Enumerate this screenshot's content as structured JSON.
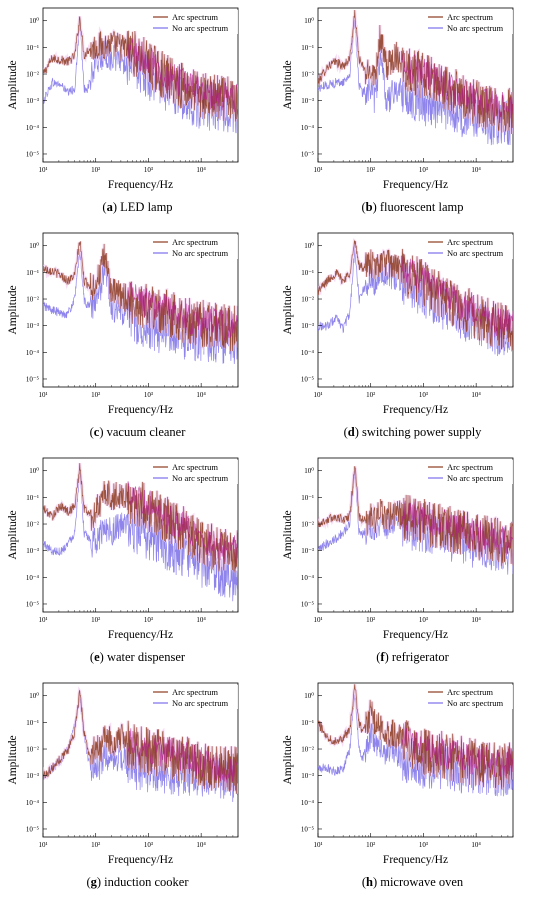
{
  "colors": {
    "arc": "#8b3a1e",
    "no_arc": "#7a6ee8",
    "overlap": "#b0178a",
    "halo": "#f4c6f0"
  },
  "chart_data": [
    {
      "type": "line",
      "panel_label": "(a)",
      "caption": "LED lamp",
      "xlabel": "Frequency/Hz",
      "ylabel": "Amplitude",
      "x_scale": "log",
      "y_scale": "log",
      "xlim": [
        10,
        50000
      ],
      "ylim": [
        5e-06,
        3
      ],
      "x_ticks": [
        "10¹",
        "10²",
        "10³",
        "10⁴"
      ],
      "y_ticks": [
        "10⁰",
        "10⁻¹",
        "10⁻²",
        "10⁻³",
        "10⁻⁴",
        "10⁻⁵"
      ],
      "legend_location": "top-right",
      "series": [
        {
          "name": "Arc spectrum",
          "x": [
            10,
            15,
            22,
            30,
            40,
            50,
            60,
            70,
            85,
            100,
            120,
            150,
            200,
            300,
            500,
            1000,
            2000,
            5000,
            10000,
            20000,
            50000
          ],
          "y": [
            0.01,
            0.04,
            0.035,
            0.03,
            0.05,
            1.5,
            0.05,
            0.08,
            0.1,
            0.12,
            0.13,
            0.14,
            0.15,
            0.12,
            0.08,
            0.03,
            0.01,
            0.004,
            0.002,
            0.0015,
            0.0012
          ]
        },
        {
          "name": "No arc spectrum",
          "x": [
            10,
            15,
            22,
            30,
            40,
            50,
            60,
            70,
            85,
            100,
            120,
            150,
            200,
            300,
            500,
            1000,
            2000,
            5000,
            10000,
            20000,
            50000
          ],
          "y": [
            0.001,
            0.005,
            0.004,
            0.002,
            0.003,
            1.0,
            0.003,
            0.003,
            0.01,
            0.03,
            0.05,
            0.06,
            0.05,
            0.04,
            0.025,
            0.01,
            0.004,
            0.0015,
            0.0008,
            0.0006,
            0.0005
          ]
        }
      ]
    },
    {
      "type": "line",
      "panel_label": "(b)",
      "caption": "fluorescent lamp",
      "xlabel": "Frequency/Hz",
      "ylabel": "Amplitude",
      "x_scale": "log",
      "y_scale": "log",
      "xlim": [
        10,
        50000
      ],
      "ylim": [
        5e-06,
        3
      ],
      "x_ticks": [
        "10¹",
        "10²",
        "10³",
        "10⁴"
      ],
      "y_ticks": [
        "10⁰",
        "10⁻¹",
        "10⁻²",
        "10⁻³",
        "10⁻⁴",
        "10⁻⁵"
      ],
      "legend_location": "top-right",
      "series": [
        {
          "name": "Arc spectrum",
          "x": [
            10,
            15,
            22,
            30,
            40,
            50,
            60,
            70,
            85,
            100,
            120,
            150,
            200,
            300,
            500,
            1000,
            2000,
            5000,
            10000,
            20000,
            50000
          ],
          "y": [
            0.005,
            0.02,
            0.03,
            0.02,
            0.04,
            2.0,
            0.04,
            0.02,
            0.01,
            0.02,
            0.01,
            0.3,
            0.02,
            0.06,
            0.02,
            0.01,
            0.005,
            0.002,
            0.001,
            0.0006,
            0.0005
          ]
        },
        {
          "name": "No arc spectrum",
          "x": [
            10,
            15,
            22,
            30,
            40,
            50,
            60,
            70,
            85,
            100,
            120,
            150,
            200,
            300,
            500,
            1000,
            2000,
            5000,
            10000,
            20000,
            50000
          ],
          "y": [
            0.003,
            0.004,
            0.005,
            0.005,
            0.01,
            1.2,
            0.004,
            0.002,
            0.003,
            0.004,
            0.001,
            0.05,
            0.001,
            0.003,
            0.002,
            0.001,
            0.0008,
            0.0004,
            0.0003,
            0.0002,
            0.0002
          ]
        }
      ]
    },
    {
      "type": "line",
      "panel_label": "(c)",
      "caption": "vacuum cleaner",
      "xlabel": "Frequency/Hz",
      "ylabel": "Amplitude",
      "x_scale": "log",
      "y_scale": "log",
      "xlim": [
        10,
        50000
      ],
      "ylim": [
        5e-06,
        3
      ],
      "x_ticks": [
        "10¹",
        "10²",
        "10³",
        "10⁴"
      ],
      "y_ticks": [
        "10⁰",
        "10⁻¹",
        "10⁻²",
        "10⁻³",
        "10⁻⁴",
        "10⁻⁵"
      ],
      "legend_location": "top-right",
      "series": [
        {
          "name": "Arc spectrum",
          "x": [
            10,
            15,
            22,
            30,
            40,
            50,
            60,
            70,
            85,
            100,
            120,
            150,
            200,
            300,
            500,
            1000,
            2000,
            5000,
            10000,
            20000,
            50000
          ],
          "y": [
            0.15,
            0.12,
            0.08,
            0.05,
            0.08,
            1.8,
            0.05,
            0.04,
            0.03,
            0.05,
            0.1,
            0.5,
            0.02,
            0.015,
            0.01,
            0.006,
            0.004,
            0.002,
            0.0015,
            0.0012,
            0.001
          ]
        },
        {
          "name": "No arc spectrum",
          "x": [
            10,
            15,
            22,
            30,
            40,
            50,
            60,
            70,
            85,
            100,
            120,
            150,
            200,
            300,
            500,
            1000,
            2000,
            5000,
            10000,
            20000,
            50000
          ],
          "y": [
            0.006,
            0.004,
            0.003,
            0.003,
            0.01,
            0.8,
            0.01,
            0.006,
            0.006,
            0.01,
            0.02,
            0.3,
            0.005,
            0.004,
            0.002,
            0.001,
            0.0008,
            0.0005,
            0.0004,
            0.0003,
            0.0003
          ]
        }
      ]
    },
    {
      "type": "line",
      "panel_label": "(d)",
      "caption": "switching power supply",
      "xlabel": "Frequency/Hz",
      "ylabel": "Amplitude",
      "x_scale": "log",
      "y_scale": "log",
      "xlim": [
        10,
        50000
      ],
      "ylim": [
        5e-06,
        3
      ],
      "x_ticks": [
        "10¹",
        "10²",
        "10³",
        "10⁴"
      ],
      "y_ticks": [
        "10⁰",
        "10⁻¹",
        "10⁻²",
        "10⁻³",
        "10⁻⁴",
        "10⁻⁵"
      ],
      "legend_location": "top-right",
      "series": [
        {
          "name": "Arc spectrum",
          "x": [
            10,
            15,
            22,
            30,
            40,
            50,
            60,
            70,
            85,
            100,
            120,
            150,
            200,
            300,
            500,
            1000,
            2000,
            5000,
            10000,
            20000,
            50000
          ],
          "y": [
            0.02,
            0.05,
            0.1,
            0.05,
            0.1,
            1.5,
            0.2,
            0.15,
            0.2,
            0.25,
            0.15,
            0.3,
            0.25,
            0.2,
            0.1,
            0.05,
            0.02,
            0.006,
            0.003,
            0.0015,
            0.001
          ]
        },
        {
          "name": "No arc spectrum",
          "x": [
            10,
            15,
            22,
            30,
            40,
            50,
            60,
            70,
            85,
            100,
            120,
            150,
            200,
            300,
            500,
            1000,
            2000,
            5000,
            10000,
            20000,
            50000
          ],
          "y": [
            0.001,
            0.001,
            0.002,
            0.0008,
            0.003,
            0.9,
            0.01,
            0.02,
            0.04,
            0.08,
            0.05,
            0.15,
            0.1,
            0.08,
            0.05,
            0.02,
            0.008,
            0.003,
            0.0015,
            0.0007,
            0.0005
          ]
        }
      ]
    },
    {
      "type": "line",
      "panel_label": "(e)",
      "caption": "water dispenser",
      "xlabel": "Frequency/Hz",
      "ylabel": "Amplitude",
      "x_scale": "log",
      "y_scale": "log",
      "xlim": [
        10,
        50000
      ],
      "ylim": [
        5e-06,
        3
      ],
      "x_ticks": [
        "10¹",
        "10²",
        "10³",
        "10⁴"
      ],
      "y_ticks": [
        "10⁰",
        "10⁻¹",
        "10⁻²",
        "10⁻³",
        "10⁻⁴",
        "10⁻⁵"
      ],
      "legend_location": "top-right",
      "series": [
        {
          "name": "Arc spectrum",
          "x": [
            10,
            15,
            22,
            30,
            40,
            50,
            60,
            70,
            85,
            100,
            120,
            150,
            200,
            300,
            500,
            1000,
            2000,
            5000,
            10000,
            20000,
            50000
          ],
          "y": [
            0.04,
            0.02,
            0.05,
            0.03,
            0.05,
            1.5,
            0.04,
            0.03,
            0.02,
            0.04,
            0.05,
            0.2,
            0.1,
            0.15,
            0.08,
            0.05,
            0.02,
            0.007,
            0.003,
            0.0015,
            0.001
          ]
        },
        {
          "name": "No arc spectrum",
          "x": [
            10,
            15,
            22,
            30,
            40,
            50,
            60,
            70,
            85,
            100,
            120,
            150,
            200,
            300,
            500,
            1000,
            2000,
            5000,
            10000,
            20000,
            50000
          ],
          "y": [
            0.002,
            0.001,
            0.001,
            0.002,
            0.005,
            1.2,
            0.005,
            0.003,
            0.002,
            0.003,
            0.004,
            0.01,
            0.006,
            0.01,
            0.008,
            0.004,
            0.002,
            0.0008,
            0.0004,
            0.0002,
            0.0001
          ]
        }
      ]
    },
    {
      "type": "line",
      "panel_label": "(f)",
      "caption": "refrigerator",
      "xlabel": "Frequency/Hz",
      "ylabel": "Amplitude",
      "x_scale": "log",
      "y_scale": "log",
      "xlim": [
        10,
        50000
      ],
      "ylim": [
        5e-06,
        3
      ],
      "x_ticks": [
        "10¹",
        "10²",
        "10³",
        "10⁴"
      ],
      "y_ticks": [
        "10⁰",
        "10⁻¹",
        "10⁻²",
        "10⁻³",
        "10⁻⁴",
        "10⁻⁵"
      ],
      "legend_location": "top-right",
      "series": [
        {
          "name": "Arc spectrum",
          "x": [
            10,
            15,
            22,
            30,
            40,
            50,
            60,
            70,
            85,
            100,
            120,
            150,
            200,
            300,
            500,
            1000,
            2000,
            5000,
            10000,
            20000,
            50000
          ],
          "y": [
            0.01,
            0.015,
            0.02,
            0.015,
            0.02,
            2.0,
            0.02,
            0.015,
            0.012,
            0.03,
            0.015,
            0.03,
            0.02,
            0.03,
            0.02,
            0.015,
            0.01,
            0.006,
            0.004,
            0.003,
            0.002
          ]
        },
        {
          "name": "No arc spectrum",
          "x": [
            10,
            15,
            22,
            30,
            40,
            50,
            60,
            70,
            85,
            100,
            120,
            150,
            200,
            300,
            500,
            1000,
            2000,
            5000,
            10000,
            20000,
            50000
          ],
          "y": [
            0.001,
            0.002,
            0.003,
            0.005,
            0.01,
            1.0,
            0.005,
            0.004,
            0.006,
            0.01,
            0.008,
            0.015,
            0.01,
            0.015,
            0.01,
            0.008,
            0.005,
            0.003,
            0.002,
            0.0015,
            0.001
          ]
        }
      ]
    },
    {
      "type": "line",
      "panel_label": "(g)",
      "caption": "induction cooker",
      "xlabel": "Frequency/Hz",
      "ylabel": "Amplitude",
      "x_scale": "log",
      "y_scale": "log",
      "xlim": [
        10,
        50000
      ],
      "ylim": [
        5e-06,
        3
      ],
      "x_ticks": [
        "10¹",
        "10²",
        "10³",
        "10⁴"
      ],
      "y_ticks": [
        "10⁰",
        "10⁻¹",
        "10⁻²",
        "10⁻³",
        "10⁻⁴",
        "10⁻⁵"
      ],
      "legend_location": "top-right",
      "series": [
        {
          "name": "Arc spectrum",
          "x": [
            10,
            15,
            22,
            30,
            40,
            50,
            60,
            70,
            85,
            100,
            120,
            150,
            200,
            300,
            500,
            1000,
            2000,
            5000,
            10000,
            20000,
            50000
          ],
          "y": [
            0.001,
            0.002,
            0.005,
            0.01,
            0.05,
            1.5,
            0.05,
            0.01,
            0.005,
            0.02,
            0.01,
            0.03,
            0.02,
            0.03,
            0.015,
            0.01,
            0.008,
            0.005,
            0.003,
            0.002,
            0.002
          ]
        },
        {
          "name": "No arc spectrum",
          "x": [
            10,
            15,
            22,
            30,
            40,
            50,
            60,
            70,
            85,
            100,
            120,
            150,
            200,
            300,
            500,
            1000,
            2000,
            5000,
            10000,
            20000,
            50000
          ],
          "y": [
            0.001,
            0.002,
            0.004,
            0.01,
            0.08,
            1.0,
            0.03,
            0.006,
            0.002,
            0.004,
            0.002,
            0.008,
            0.004,
            0.006,
            0.003,
            0.002,
            0.002,
            0.0015,
            0.001,
            0.001,
            0.0008
          ]
        }
      ]
    },
    {
      "type": "line",
      "panel_label": "(h)",
      "caption": "microwave oven",
      "xlabel": "Frequency/Hz",
      "ylabel": "Amplitude",
      "x_scale": "log",
      "y_scale": "log",
      "xlim": [
        10,
        50000
      ],
      "ylim": [
        5e-06,
        3
      ],
      "x_ticks": [
        "10¹",
        "10²",
        "10³",
        "10⁴"
      ],
      "y_ticks": [
        "10⁰",
        "10⁻¹",
        "10⁻²",
        "10⁻³",
        "10⁻⁴",
        "10⁻⁵"
      ],
      "legend_location": "top-right",
      "series": [
        {
          "name": "Arc spectrum",
          "x": [
            10,
            15,
            22,
            30,
            40,
            50,
            60,
            70,
            85,
            100,
            120,
            150,
            200,
            300,
            500,
            1000,
            2000,
            5000,
            10000,
            20000,
            50000
          ],
          "y": [
            0.1,
            0.03,
            0.02,
            0.03,
            0.05,
            2.5,
            0.1,
            0.05,
            0.1,
            0.3,
            0.1,
            0.08,
            0.05,
            0.04,
            0.02,
            0.01,
            0.008,
            0.005,
            0.004,
            0.003,
            0.003
          ]
        },
        {
          "name": "No arc spectrum",
          "x": [
            10,
            15,
            22,
            30,
            40,
            50,
            60,
            70,
            85,
            100,
            120,
            150,
            200,
            300,
            500,
            1000,
            2000,
            5000,
            10000,
            20000,
            50000
          ],
          "y": [
            0.002,
            0.002,
            0.0015,
            0.002,
            0.01,
            1.5,
            0.01,
            0.005,
            0.01,
            0.05,
            0.02,
            0.01,
            0.01,
            0.008,
            0.005,
            0.003,
            0.003,
            0.002,
            0.002,
            0.0015,
            0.0015
          ]
        }
      ]
    }
  ]
}
